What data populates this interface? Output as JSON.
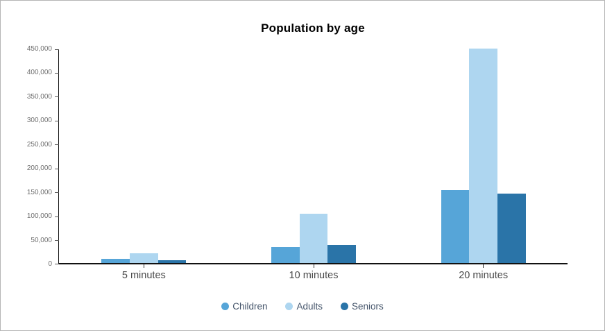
{
  "frame": {
    "background": "#ffffff",
    "border_color": "#b5b5b5"
  },
  "chart_data": {
    "type": "bar",
    "title": "Population by age",
    "xlabel": "",
    "ylabel": "",
    "categories": [
      "5 minutes",
      "10 minutes",
      "20 minutes"
    ],
    "series": [
      {
        "name": "Children",
        "color": "#56a5d8",
        "values": [
          8500,
          34000,
          152500
        ]
      },
      {
        "name": "Adults",
        "color": "#aed6f0",
        "values": [
          21000,
          103000,
          449000
        ]
      },
      {
        "name": "Seniors",
        "color": "#2a74a8",
        "values": [
          6300,
          37500,
          145000
        ]
      }
    ],
    "ylim": [
      0,
      450000
    ],
    "y_tick_step": 50000,
    "y_tick_labels": [
      "0",
      "50,000",
      "100,000",
      "150,000",
      "200,000",
      "250,000",
      "300,000",
      "350,000",
      "400,000",
      "450,000"
    ],
    "grid": false,
    "legend_position": "bottom",
    "axis_color": "#111111",
    "y_tick_label_color": "#6e6e6e",
    "x_label_color": "#4a4a4a",
    "legend_text_color": "#44546a"
  }
}
